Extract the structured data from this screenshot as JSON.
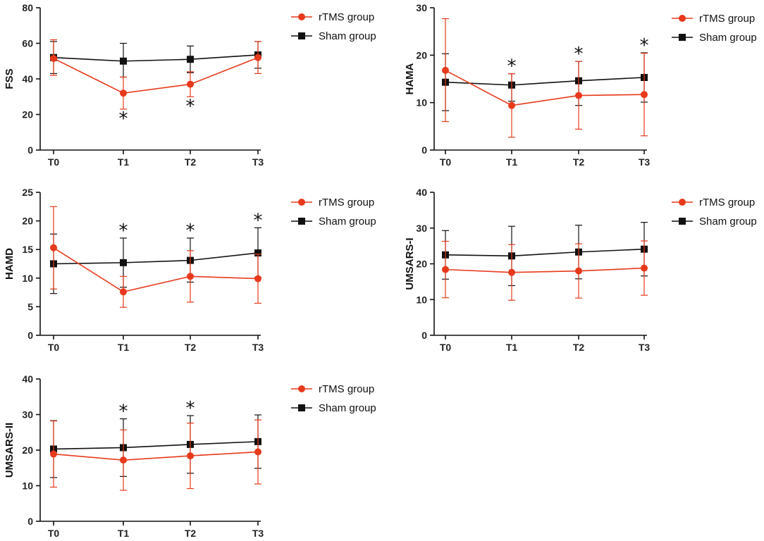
{
  "chart_data": [
    {
      "type": "line",
      "ylabel": "FSS",
      "categories": [
        "T0",
        "T1",
        "T2",
        "T3"
      ],
      "ylim": [
        0,
        80
      ],
      "yticks": [
        0,
        20,
        40,
        60,
        80
      ],
      "series": [
        {
          "name": "rTMS group",
          "color": "#e8391c",
          "marker": "circle",
          "values": [
            51.5,
            32,
            37,
            52
          ],
          "err_low": [
            9.5,
            9,
            7,
            9
          ],
          "err_high": [
            10.5,
            9,
            7,
            9
          ]
        },
        {
          "name": "Sham group",
          "color": "#111111",
          "marker": "square",
          "values": [
            52,
            50,
            51,
            53.5
          ],
          "err_low": [
            9,
            9,
            7.5,
            7.5
          ],
          "err_high": [
            9,
            10,
            7.5,
            7.5
          ]
        }
      ],
      "significance": [
        {
          "category": "T1",
          "symbol": "*",
          "position": "below"
        },
        {
          "category": "T2",
          "symbol": "*",
          "position": "below"
        }
      ]
    },
    {
      "type": "line",
      "ylabel": "HAMA",
      "categories": [
        "T0",
        "T1",
        "T2",
        "T3"
      ],
      "ylim": [
        0,
        30
      ],
      "yticks": [
        0,
        10,
        20,
        30
      ],
      "series": [
        {
          "name": "rTMS group",
          "color": "#e8391c",
          "marker": "circle",
          "values": [
            16.8,
            9.4,
            11.5,
            11.7
          ],
          "err_low": [
            10.8,
            6.7,
            7.1,
            8.7
          ],
          "err_high": [
            10.9,
            6.7,
            7.2,
            8.7
          ]
        },
        {
          "name": "Sham group",
          "color": "#111111",
          "marker": "square",
          "values": [
            14.3,
            13.7,
            14.6,
            15.3
          ],
          "err_low": [
            6,
            3.4,
            5.2,
            5.2
          ],
          "err_high": [
            6,
            2.4,
            4.1,
            5.2
          ]
        }
      ],
      "significance": [
        {
          "category": "T1",
          "symbol": "*",
          "position": "above"
        },
        {
          "category": "T2",
          "symbol": "*",
          "position": "above"
        },
        {
          "category": "T3",
          "symbol": "*",
          "position": "above"
        }
      ]
    },
    {
      "type": "line",
      "ylabel": "HAMD",
      "categories": [
        "T0",
        "T1",
        "T2",
        "T3"
      ],
      "ylim": [
        0,
        25
      ],
      "yticks": [
        0,
        5,
        10,
        15,
        20,
        25
      ],
      "series": [
        {
          "name": "rTMS group",
          "color": "#e8391c",
          "marker": "circle",
          "values": [
            15.3,
            7.6,
            10.3,
            9.9
          ],
          "err_low": [
            7.2,
            2.7,
            4.5,
            4.3
          ],
          "err_high": [
            7.2,
            2.7,
            4.5,
            4.3
          ]
        },
        {
          "name": "Sham group",
          "color": "#111111",
          "marker": "square",
          "values": [
            12.5,
            12.7,
            13.1,
            14.4
          ],
          "err_low": [
            5.2,
            4.3,
            3.8,
            4.3
          ],
          "err_high": [
            5.2,
            4.3,
            3.9,
            4.4
          ]
        }
      ],
      "significance": [
        {
          "category": "T1",
          "symbol": "*",
          "position": "above"
        },
        {
          "category": "T2",
          "symbol": "*",
          "position": "above"
        },
        {
          "category": "T3",
          "symbol": "*",
          "position": "above"
        }
      ]
    },
    {
      "type": "line",
      "ylabel": "UMSARS-I",
      "categories": [
        "T0",
        "T1",
        "T2",
        "T3"
      ],
      "ylim": [
        0,
        40
      ],
      "yticks": [
        0,
        10,
        20,
        30,
        40
      ],
      "series": [
        {
          "name": "rTMS group",
          "color": "#e8391c",
          "marker": "circle",
          "values": [
            18.4,
            17.6,
            18,
            18.8
          ],
          "err_low": [
            7.9,
            7.8,
            7.6,
            7.6
          ],
          "err_high": [
            7.9,
            7.8,
            7.6,
            7.6
          ]
        },
        {
          "name": "Sham group",
          "color": "#111111",
          "marker": "square",
          "values": [
            22.5,
            22.2,
            23.3,
            24.1
          ],
          "err_low": [
            6.8,
            8.3,
            7.5,
            7.5
          ],
          "err_high": [
            6.8,
            8.3,
            7.5,
            7.5
          ]
        }
      ],
      "significance": []
    },
    {
      "type": "line",
      "ylabel": "UMSARS-II",
      "categories": [
        "T0",
        "T1",
        "T2",
        "T3"
      ],
      "ylim": [
        0,
        40
      ],
      "yticks": [
        0,
        10,
        20,
        30,
        40
      ],
      "series": [
        {
          "name": "rTMS group",
          "color": "#e8391c",
          "marker": "circle",
          "values": [
            18.9,
            17.2,
            18.4,
            19.5
          ],
          "err_low": [
            9.3,
            8.5,
            9.2,
            9
          ],
          "err_high": [
            9.3,
            8.5,
            9.2,
            9
          ]
        },
        {
          "name": "Sham group",
          "color": "#111111",
          "marker": "square",
          "values": [
            20.3,
            20.7,
            21.6,
            22.4
          ],
          "err_low": [
            8,
            8.1,
            8.1,
            7.5
          ],
          "err_high": [
            8,
            8.1,
            8.1,
            7.5
          ]
        }
      ],
      "significance": [
        {
          "category": "T1",
          "symbol": "*",
          "position": "above"
        },
        {
          "category": "T2",
          "symbol": "*",
          "position": "above"
        }
      ]
    }
  ]
}
